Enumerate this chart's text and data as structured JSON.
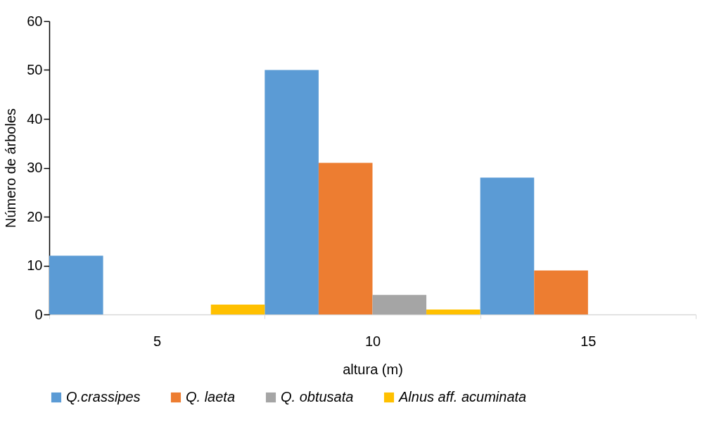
{
  "chart_data": {
    "type": "bar",
    "xlabel": "altura (m)",
    "ylabel": "Número de árboles",
    "categories": [
      "5",
      "10",
      "15"
    ],
    "series": [
      {
        "name": "Q.crassipes",
        "color": "#5b9bd5",
        "values": [
          12,
          50,
          28
        ]
      },
      {
        "name": "Q. laeta",
        "color": "#ed7d31",
        "values": [
          0,
          31,
          9
        ]
      },
      {
        "name": "Q. obtusata",
        "color": "#a5a5a5",
        "values": [
          0,
          4,
          0
        ]
      },
      {
        "name": "Alnus aff. acuminata",
        "color": "#ffc000",
        "values": [
          2,
          1,
          0
        ]
      }
    ],
    "ylim": [
      0,
      60
    ],
    "yticks": [
      0,
      10,
      20,
      30,
      40,
      50,
      60
    ],
    "legend": "bottom"
  }
}
